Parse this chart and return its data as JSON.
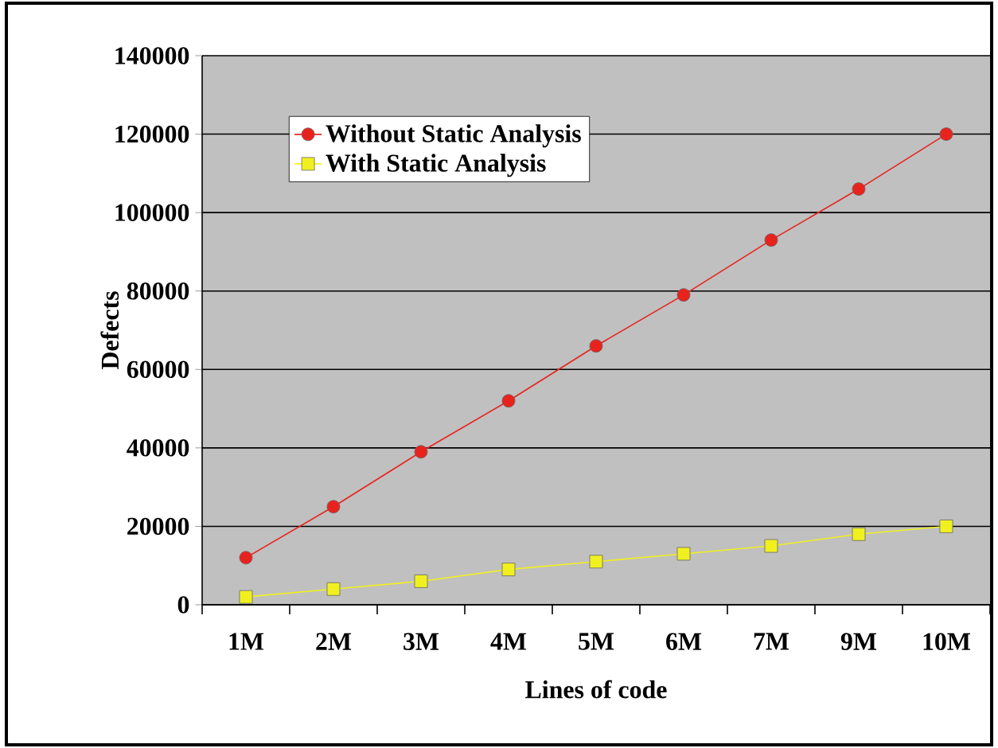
{
  "chart_data": {
    "type": "line",
    "xlabel": "Lines of code",
    "ylabel": "Defects",
    "categories": [
      "1M",
      "2M",
      "3M",
      "4M",
      "5M",
      "6M",
      "7M",
      "9M",
      "10M"
    ],
    "series": [
      {
        "name": "Without Static Analysis",
        "color": "#e8231e",
        "marker": "circle",
        "values": [
          12000,
          25000,
          39000,
          52000,
          66000,
          79000,
          93000,
          106000,
          120000
        ]
      },
      {
        "name": "With Static Analysis",
        "color": "#f0f020",
        "marker": "square",
        "values": [
          2000,
          4000,
          6000,
          9000,
          11000,
          13000,
          15000,
          18000,
          20000
        ]
      }
    ],
    "ylim": [
      0,
      140000
    ],
    "yticks": [
      0,
      20000,
      40000,
      60000,
      80000,
      100000,
      120000,
      140000
    ],
    "grid": "y",
    "legend": "top left"
  }
}
